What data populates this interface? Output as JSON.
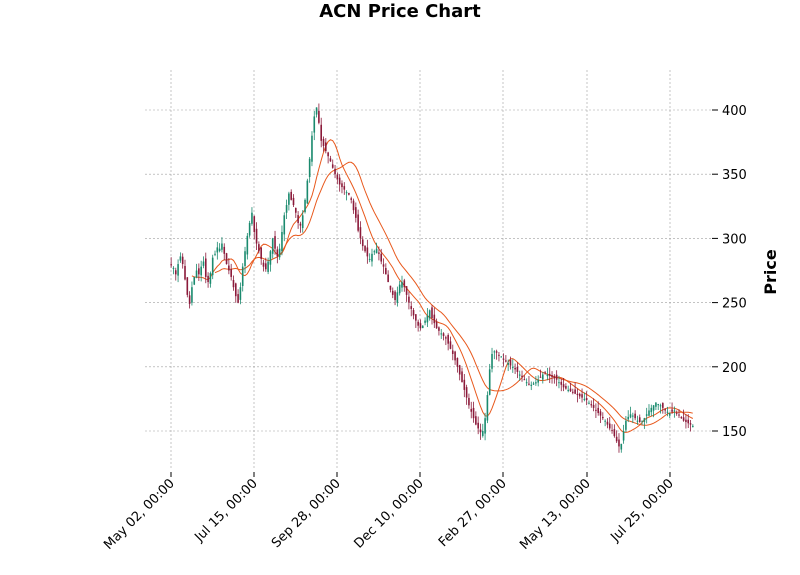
{
  "chart_data": {
    "type": "candlestick",
    "title": "ACN Price Chart",
    "ylabel": "Price",
    "y_ticks": [
      150,
      200,
      250,
      300,
      350,
      400
    ],
    "ylim": [
      118,
      428
    ],
    "x_tick_labels": [
      "May 02, 00:00",
      "Jul 15, 00:00",
      "Sep 28, 00:00",
      "Dec 10, 00:00",
      "Feb 27, 00:00",
      "May 13, 00:00",
      "Jul 25, 00:00"
    ],
    "grid": true,
    "colors": {
      "up": "#1a8a6e",
      "down": "#8b1a3a",
      "ma": "#e8581c",
      "grid": "#a0a0a0"
    },
    "series": [
      {
        "kind": "price",
        "values": [
          279,
          277,
          272,
          280,
          286,
          280,
          268,
          256,
          249,
          262,
          270,
          275,
          272,
          278,
          282,
          270,
          266,
          273,
          285,
          288,
          293,
          292,
          296,
          288,
          280,
          275,
          270,
          262,
          255,
          250,
          262,
          278,
          290,
          302,
          312,
          320,
          305,
          296,
          290,
          284,
          278,
          276,
          282,
          290,
          300,
          292,
          286,
          292,
          305,
          318,
          326,
          335,
          330,
          326,
          320,
          312,
          310,
          318,
          330,
          345,
          362,
          380,
          395,
          402,
          390,
          376,
          372,
          368,
          364,
          360,
          355,
          350,
          346,
          342,
          340,
          338,
          336,
          334,
          330,
          322,
          316,
          306,
          300,
          294,
          290,
          286,
          284,
          288,
          290,
          292,
          288,
          282,
          278,
          272,
          266,
          260,
          256,
          252,
          258,
          264,
          266,
          262,
          256,
          250,
          245,
          240,
          236,
          232,
          230,
          232,
          236,
          240,
          244,
          238,
          234,
          230,
          228,
          226,
          224,
          222,
          218,
          214,
          210,
          205,
          200,
          194,
          188,
          182,
          176,
          170,
          165,
          160,
          155,
          152,
          149,
          150,
          160,
          178,
          198,
          210,
          212,
          211,
          209,
          208,
          206,
          204,
          203,
          201,
          200,
          198,
          196,
          194,
          192,
          190,
          188,
          186,
          186,
          187,
          188,
          190,
          192,
          194,
          195,
          194,
          193,
          192,
          191,
          190,
          188,
          186,
          184,
          183,
          182,
          181,
          180,
          179,
          178,
          177,
          176,
          175,
          174,
          172,
          170,
          168,
          166,
          164,
          162,
          160,
          158,
          155,
          152,
          150,
          146,
          142,
          138,
          140,
          150,
          158,
          161,
          163,
          162,
          160,
          158,
          157,
          158,
          160,
          163,
          166,
          168,
          170,
          172,
          171,
          170,
          168,
          166,
          165,
          164,
          165,
          166,
          164,
          162,
          160,
          158,
          157,
          156,
          155,
          154
        ]
      },
      {
        "kind": "moving_average",
        "window": 10
      },
      {
        "kind": "moving_average",
        "window": 20
      }
    ]
  }
}
